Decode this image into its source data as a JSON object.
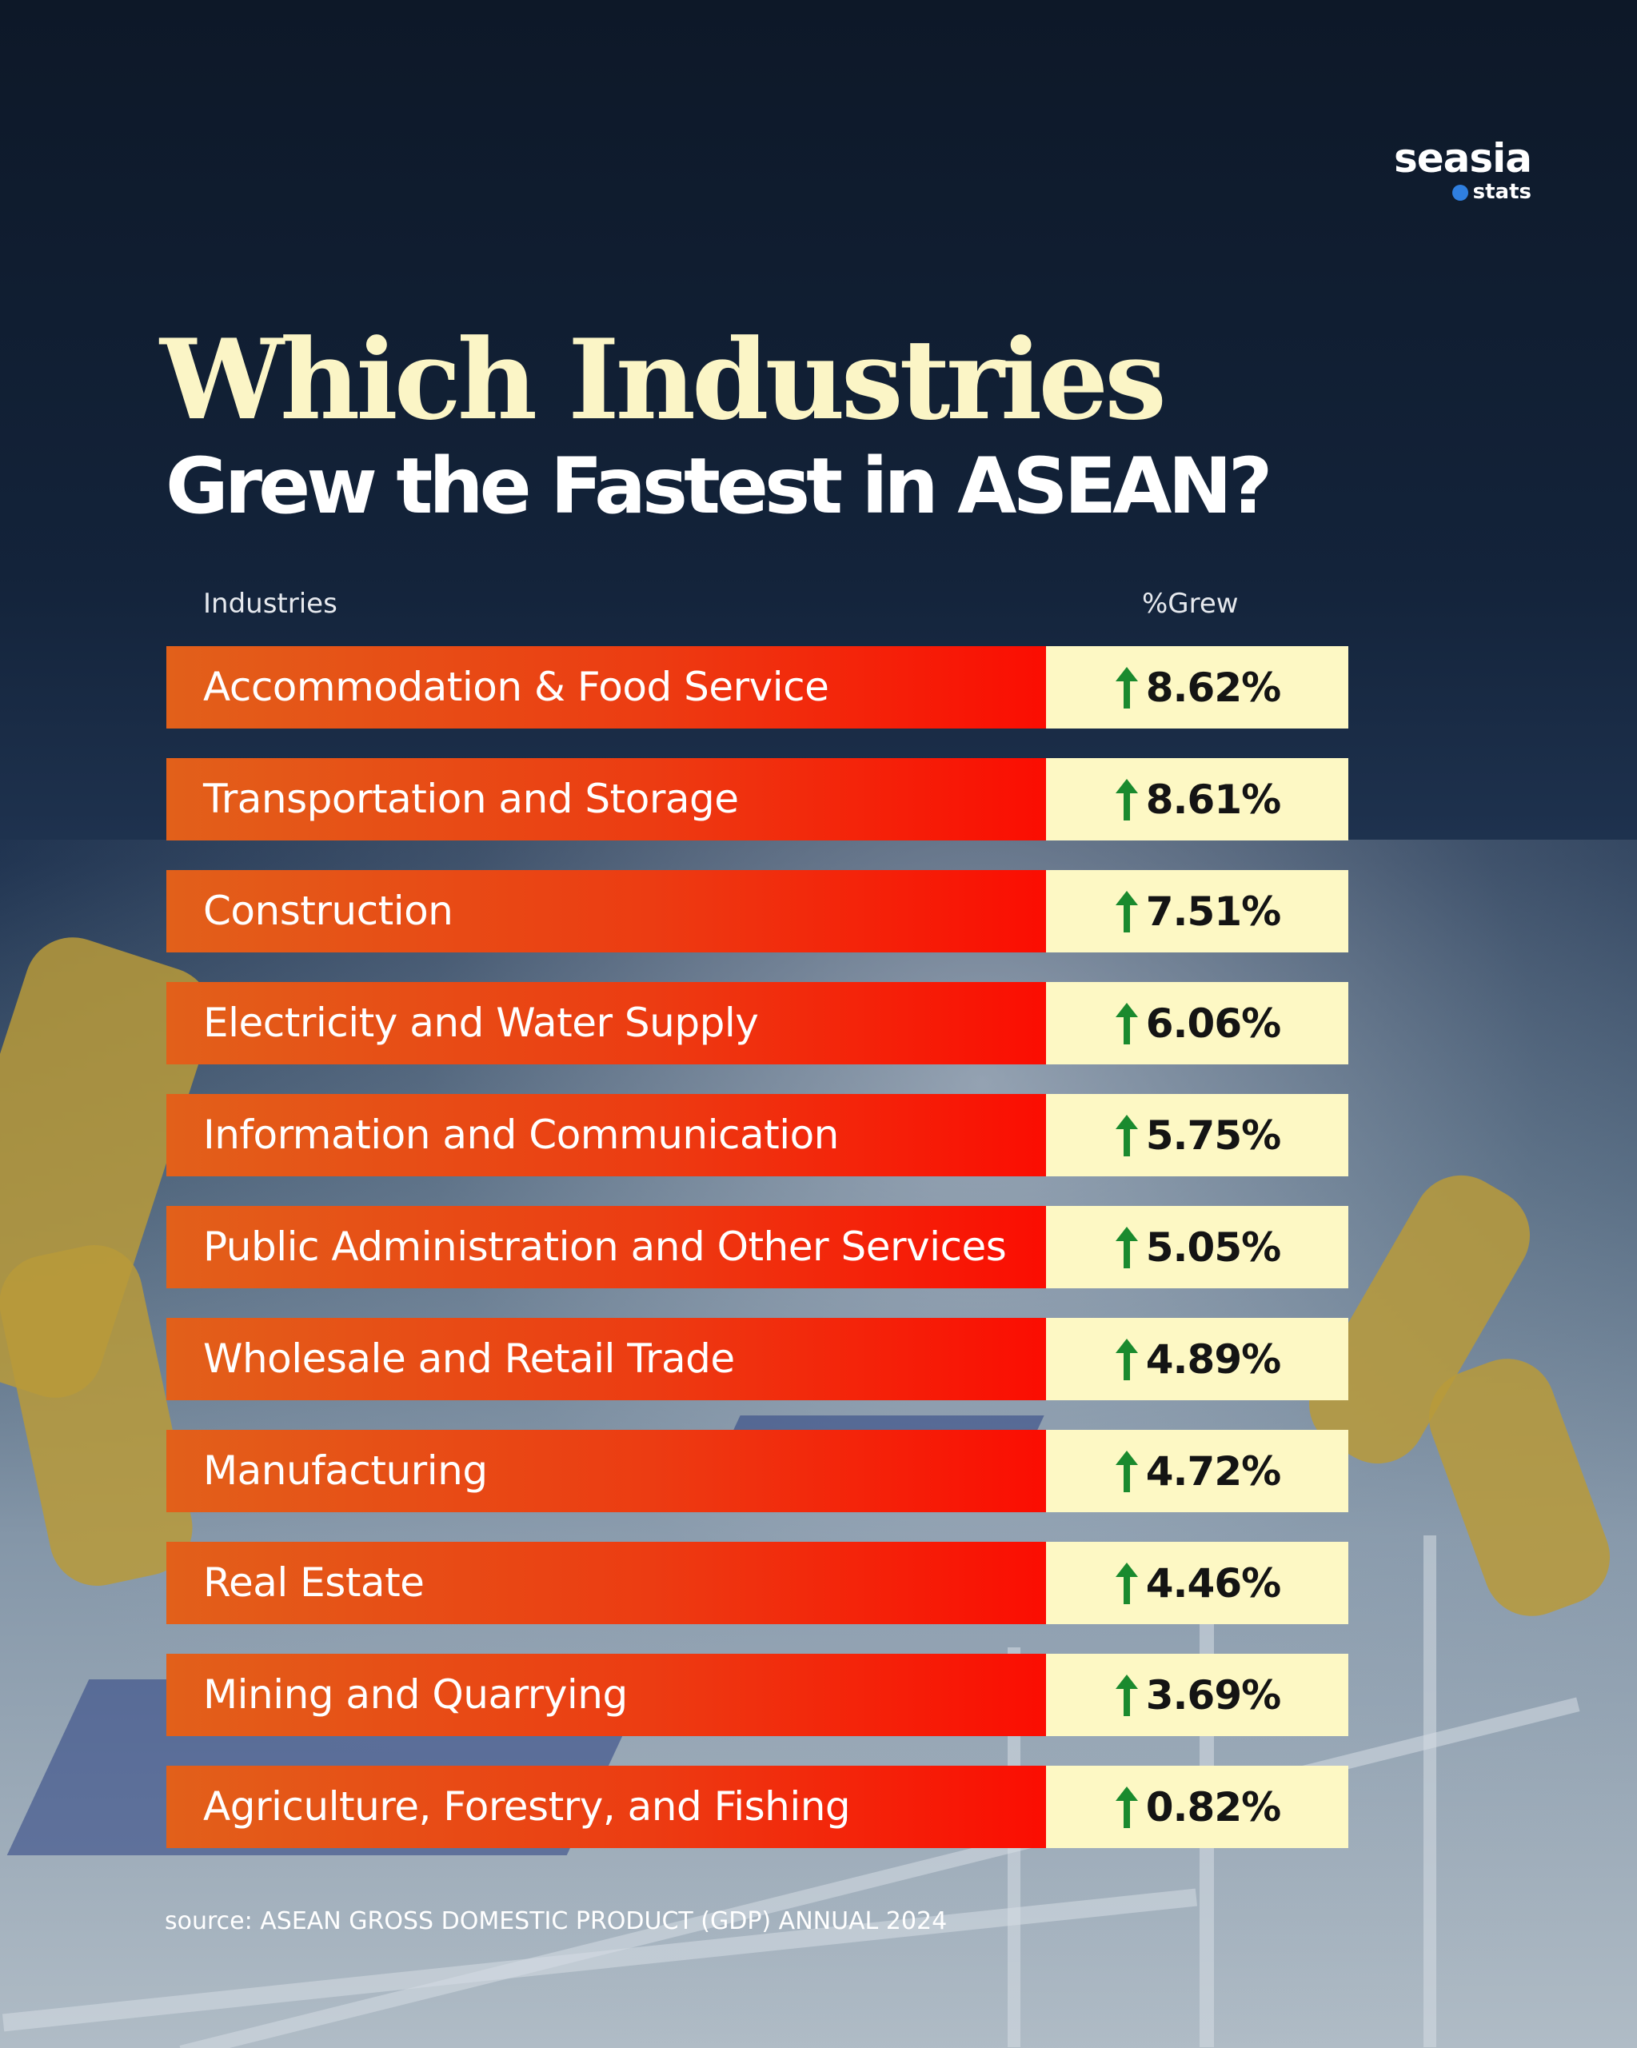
{
  "brand": {
    "name": "seasia",
    "sub": "stats"
  },
  "title": {
    "line1": "Which Industries",
    "line2": "Grew the Fastest in ASEAN?"
  },
  "headers": {
    "industries": "Industries",
    "pct": "%Grew"
  },
  "chart_data": {
    "type": "table",
    "columns": [
      "Industries",
      "%Grew"
    ],
    "rows": [
      {
        "industry": "Accommodation & Food Service",
        "value": 8.62,
        "label": "8.62%"
      },
      {
        "industry": "Transportation and Storage",
        "value": 8.61,
        "label": "8.61%"
      },
      {
        "industry": "Construction",
        "value": 7.51,
        "label": "7.51%"
      },
      {
        "industry": "Electricity and Water Supply",
        "value": 6.06,
        "label": "6.06%"
      },
      {
        "industry": "Information and Communication",
        "value": 5.75,
        "label": "5.75%"
      },
      {
        "industry": "Public Administration and Other Services",
        "value": 5.05,
        "label": "5.05%"
      },
      {
        "industry": "Wholesale and Retail Trade",
        "value": 4.89,
        "label": "4.89%"
      },
      {
        "industry": "Manufacturing",
        "value": 4.72,
        "label": "4.72%"
      },
      {
        "industry": "Real Estate",
        "value": 4.46,
        "label": "4.46%"
      },
      {
        "industry": "Mining and Quarrying",
        "value": 3.69,
        "label": "3.69%"
      },
      {
        "industry": "Agriculture, Forestry, and Fishing",
        "value": 0.82,
        "label": "0.82%"
      }
    ],
    "trend_icon": "arrow-up-icon",
    "colors": {
      "name_gradient_start": "#e2601a",
      "name_gradient_end": "#fb0d02",
      "value_bg": "#fdf8c4",
      "arrow": "#1a8a2e"
    }
  },
  "source": "source: ASEAN GROSS DOMESTIC PRODUCT (GDP) ANNUAL 2024"
}
